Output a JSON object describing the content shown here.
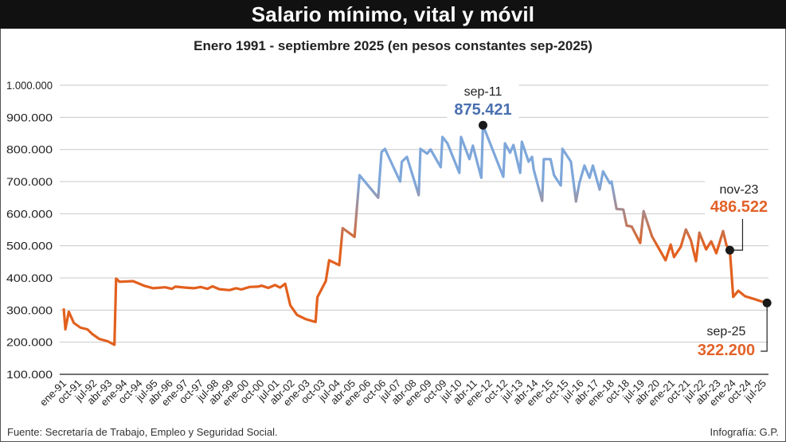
{
  "title": "Salario mínimo, vital y móvil",
  "subtitle": "Enero 1991 - septiembre 2025 (en pesos constantes sep-2025)",
  "source": "Fuente: Secretaría de Trabajo, Empleo y Seguridad Social.",
  "credit": "Infografía: G.P.",
  "colors": {
    "low": "#e2601e",
    "high": "#7ea7da",
    "annotation_blue": "#4a70b0",
    "annotation_orange": "#e2622a"
  },
  "chart_data": {
    "type": "line",
    "title": "Salario mínimo, vital y móvil",
    "subtitle": "Enero 1991 - septiembre 2025 (en pesos constantes sep-2025)",
    "xlabel": "",
    "ylabel": "",
    "ylim": [
      100000,
      1000000
    ],
    "grid": true,
    "y_ticks": [
      "1.000.000",
      "900.000",
      "800.000",
      "700.000",
      "600.000",
      "500.000",
      "400.000",
      "300.000",
      "200.000",
      "100.000"
    ],
    "y_tick_values": [
      1000000,
      900000,
      800000,
      700000,
      600000,
      500000,
      400000,
      300000,
      200000,
      100000
    ],
    "x_ticks": [
      "ene-91",
      "oct-91",
      "jul-92",
      "abr-93",
      "ene-94",
      "oct-94",
      "jul-95",
      "abr-96",
      "ene-97",
      "oct-97",
      "jul-98",
      "abr-99",
      "ene-00",
      "oct-00",
      "jul-01",
      "abr-02",
      "ene-03",
      "oct-03",
      "jul-04",
      "abr-05",
      "ene-06",
      "oct-06",
      "jul-07",
      "abr-08",
      "ene-09",
      "oct-09",
      "jul-10",
      "abr-11",
      "ene-12",
      "oct-12",
      "jul-13",
      "abr-14",
      "ene-15",
      "oct-15",
      "jul-16",
      "abr-17",
      "ene-18",
      "oct-18",
      "jul-19",
      "abr-20",
      "ene-21",
      "oct-21",
      "jul-22",
      "abr-23",
      "ene-24",
      "oct-24",
      "jul-25"
    ],
    "series": [
      {
        "points": [
          [
            "1991-01",
            305000
          ],
          [
            "1991-02",
            240000
          ],
          [
            "1991-04",
            295000
          ],
          [
            "1991-07",
            260000
          ],
          [
            "1991-11",
            245000
          ],
          [
            "1992-03",
            240000
          ],
          [
            "1992-06",
            225000
          ],
          [
            "1992-10",
            210000
          ],
          [
            "1993-03",
            203000
          ],
          [
            "1993-07",
            192000
          ],
          [
            "1993-08",
            398000
          ],
          [
            "1993-10",
            388000
          ],
          [
            "1994-06",
            390000
          ],
          [
            "1995-01",
            375000
          ],
          [
            "1995-06",
            368000
          ],
          [
            "1996-01",
            371000
          ],
          [
            "1996-05",
            366000
          ],
          [
            "1996-07",
            373000
          ],
          [
            "1997-01",
            370000
          ],
          [
            "1997-06",
            368000
          ],
          [
            "1997-10",
            372000
          ],
          [
            "1998-02",
            366000
          ],
          [
            "1998-05",
            374000
          ],
          [
            "1998-09",
            365000
          ],
          [
            "1999-03",
            362000
          ],
          [
            "1999-07",
            368000
          ],
          [
            "1999-10",
            364000
          ],
          [
            "2000-03",
            372000
          ],
          [
            "2000-08",
            373000
          ],
          [
            "2000-10",
            376000
          ],
          [
            "2001-02",
            369000
          ],
          [
            "2001-06",
            378000
          ],
          [
            "2001-09",
            370000
          ],
          [
            "2001-12",
            382000
          ],
          [
            "2002-03",
            315000
          ],
          [
            "2002-07",
            285000
          ],
          [
            "2002-12",
            272000
          ],
          [
            "2003-06",
            263000
          ],
          [
            "2003-07",
            340000
          ],
          [
            "2003-12",
            390000
          ],
          [
            "2004-02",
            455000
          ],
          [
            "2004-08",
            440000
          ],
          [
            "2004-10",
            555000
          ],
          [
            "2005-05",
            528000
          ],
          [
            "2005-08",
            720000
          ],
          [
            "2006-07",
            650000
          ],
          [
            "2006-09",
            792000
          ],
          [
            "2006-11",
            802000
          ],
          [
            "2007-08",
            700000
          ],
          [
            "2007-09",
            762000
          ],
          [
            "2007-12",
            777000
          ],
          [
            "2008-07",
            658000
          ],
          [
            "2008-08",
            802000
          ],
          [
            "2008-12",
            787000
          ],
          [
            "2009-02",
            800000
          ],
          [
            "2009-08",
            745000
          ],
          [
            "2009-09",
            839000
          ],
          [
            "2009-12",
            819000
          ],
          [
            "2010-07",
            727000
          ],
          [
            "2010-08",
            839000
          ],
          [
            "2011-01",
            770000
          ],
          [
            "2011-03",
            812000
          ],
          [
            "2011-08",
            712000
          ],
          [
            "2011-09",
            875421
          ],
          [
            "2012-09",
            715000
          ],
          [
            "2012-10",
            819000
          ],
          [
            "2013-01",
            790000
          ],
          [
            "2013-03",
            814000
          ],
          [
            "2013-07",
            727000
          ],
          [
            "2013-08",
            824000
          ],
          [
            "2013-12",
            762000
          ],
          [
            "2014-02",
            777000
          ],
          [
            "2014-03",
            737000
          ],
          [
            "2014-08",
            640000
          ],
          [
            "2014-09",
            770000
          ],
          [
            "2015-01",
            770000
          ],
          [
            "2015-03",
            720000
          ],
          [
            "2015-07",
            688000
          ],
          [
            "2015-08",
            802000
          ],
          [
            "2016-01",
            762000
          ],
          [
            "2016-04",
            638000
          ],
          [
            "2016-06",
            695000
          ],
          [
            "2016-09",
            750000
          ],
          [
            "2016-12",
            712000
          ],
          [
            "2017-02",
            750000
          ],
          [
            "2017-06",
            675000
          ],
          [
            "2017-08",
            732000
          ],
          [
            "2017-12",
            695000
          ],
          [
            "2018-01",
            700000
          ],
          [
            "2018-04",
            615000
          ],
          [
            "2018-08",
            613000
          ],
          [
            "2018-10",
            563000
          ],
          [
            "2019-01",
            560000
          ],
          [
            "2019-06",
            509000
          ],
          [
            "2019-08",
            608000
          ],
          [
            "2020-01",
            529000
          ],
          [
            "2020-09",
            455000
          ],
          [
            "2020-12",
            504000
          ],
          [
            "2021-02",
            465000
          ],
          [
            "2021-06",
            497000
          ],
          [
            "2021-09",
            551000
          ],
          [
            "2021-12",
            517000
          ],
          [
            "2022-03",
            452000
          ],
          [
            "2022-05",
            541000
          ],
          [
            "2022-09",
            489000
          ],
          [
            "2022-12",
            514000
          ],
          [
            "2023-03",
            477000
          ],
          [
            "2023-07",
            546000
          ],
          [
            "2023-09",
            502000
          ],
          [
            "2023-11",
            486522
          ],
          [
            "2024-01",
            341000
          ],
          [
            "2024-04",
            360000
          ],
          [
            "2024-08",
            343000
          ],
          [
            "2025-01",
            335000
          ],
          [
            "2025-05",
            328000
          ],
          [
            "2025-09",
            322200
          ]
        ]
      }
    ],
    "annotations": [
      {
        "label": "sep-11",
        "value": "875.421",
        "date": "2011-09",
        "color": "blue"
      },
      {
        "label": "nov-23",
        "value": "486.522",
        "date": "2023-11",
        "color": "orange"
      },
      {
        "label": "sep-25",
        "value": "322.200",
        "date": "2025-09",
        "color": "orange"
      }
    ]
  }
}
